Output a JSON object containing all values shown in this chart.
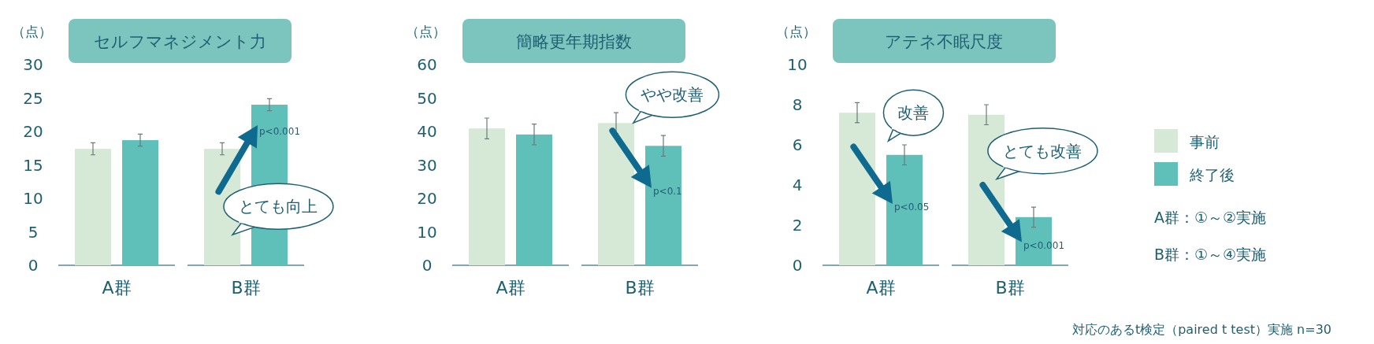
{
  "chart_data": [
    {
      "type": "bar",
      "title": "セルフマネジメント力",
      "ylabel": "（点）",
      "categories": [
        "A群",
        "B群"
      ],
      "ylim": [
        0,
        30
      ],
      "yticks": [
        0,
        5,
        10,
        15,
        20,
        25,
        30
      ],
      "legend": false,
      "series": [
        {
          "color": "#d6e9d6",
          "values": [
            17.4,
            17.4
          ],
          "errors": [
            0.9,
            0.9
          ]
        },
        {
          "color": "#5fbfb9",
          "values": [
            18.7,
            24.0
          ],
          "errors": [
            0.9,
            0.9
          ]
        }
      ],
      "annotations": [
        "とても向上",
        "p<0.001"
      ]
    },
    {
      "type": "bar",
      "title": "簡略更年期指数",
      "ylabel": "（点）",
      "categories": [
        "A群",
        "B群"
      ],
      "ylim": [
        0,
        60
      ],
      "yticks": [
        0,
        10,
        20,
        30,
        40,
        50,
        60
      ],
      "legend": false,
      "series": [
        {
          "color": "#d6e9d6",
          "values": [
            40.9,
            42.5
          ],
          "errors": [
            3.1,
            3.1
          ]
        },
        {
          "color": "#5fbfb9",
          "values": [
            39.1,
            35.7
          ],
          "errors": [
            3.1,
            3.1
          ]
        }
      ],
      "annotations": [
        "やや改善",
        "p<0.1"
      ]
    },
    {
      "type": "bar",
      "title": "アテネ不眠尺度",
      "ylabel": "（点）",
      "categories": [
        "A群",
        "B群"
      ],
      "ylim": [
        0,
        10
      ],
      "yticks": [
        0,
        2,
        4,
        6,
        8,
        10
      ],
      "legend": "right",
      "series": [
        {
          "name": "事前",
          "color": "#d6e9d6",
          "values": [
            7.6,
            7.5
          ],
          "errors": [
            0.5,
            0.5
          ]
        },
        {
          "name": "終了後",
          "color": "#5fbfb9",
          "values": [
            5.5,
            2.4
          ],
          "errors": [
            0.5,
            0.5
          ]
        }
      ],
      "annotations": [
        "改善",
        "p<0.05",
        "とても改善",
        "p<0.001",
        "A群：①～②実施",
        "B群：①～④実施",
        "対応のあるt検定（paired t test）実施 n=30"
      ]
    }
  ]
}
